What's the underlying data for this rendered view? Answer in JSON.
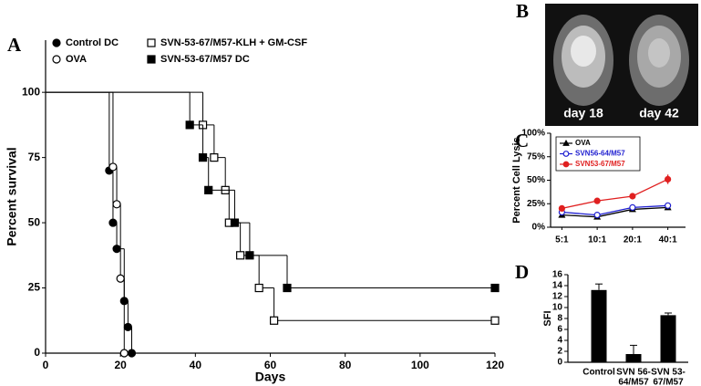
{
  "chart_data": [
    {
      "type": "survival",
      "panel": "A",
      "xlabel": "Days",
      "ylabel": "Percent survival",
      "xlim": [
        0,
        120
      ],
      "xticks": [
        0,
        20,
        40,
        60,
        80,
        100,
        120
      ],
      "ylim": [
        0,
        120
      ],
      "yticks": [
        0,
        25,
        50,
        75,
        100
      ],
      "series": [
        {
          "name": "Control DC",
          "color": "#000000",
          "marker": "circle",
          "filled": true,
          "x": [
            0,
            17,
            18,
            19,
            21,
            22,
            23
          ],
          "values": [
            100,
            70,
            50,
            40,
            20,
            10,
            0
          ]
        },
        {
          "name": "OVA",
          "color": "#000000",
          "marker": "circle",
          "filled": false,
          "x": [
            0,
            18,
            19,
            20,
            21
          ],
          "values": [
            100,
            71.4,
            57.1,
            28.6,
            0
          ]
        },
        {
          "name": "SVN-53-67/M57-KLH + GM-CSF",
          "color": "#000000",
          "marker": "square",
          "filled": false,
          "x": [
            0,
            42,
            45,
            48,
            49,
            52,
            57,
            61,
            120
          ],
          "values": [
            100,
            87.5,
            75,
            62.5,
            50,
            37.5,
            25,
            12.5,
            12.5
          ]
        },
        {
          "name": "SVN-53-67/M57 DC",
          "color": "#000000",
          "marker": "square",
          "filled": true,
          "x": [
            0,
            38.5,
            42,
            43.5,
            50.5,
            54.5,
            64.5,
            120
          ],
          "values": [
            100,
            87.5,
            75,
            62.5,
            50,
            37.5,
            25,
            25
          ]
        }
      ]
    },
    {
      "type": "line",
      "panel": "C",
      "ylabel": "Percent Cell Lysis",
      "categories": [
        "5:1",
        "10:1",
        "20:1",
        "40:1"
      ],
      "ylim": [
        0,
        100
      ],
      "yticks": [
        {
          "value": 0,
          "label": "0%"
        },
        {
          "value": 25,
          "label": "25%"
        },
        {
          "value": 50,
          "label": "50%"
        },
        {
          "value": 75,
          "label": "75%"
        },
        {
          "value": 100,
          "label": "100%"
        }
      ],
      "series": [
        {
          "name": "OVA",
          "color": "#000000",
          "marker": "triangle",
          "filled": true,
          "values": [
            13,
            11,
            19,
            21
          ]
        },
        {
          "name": "SVN56-64/M57",
          "color": "#1f1fd0",
          "marker": "circle",
          "filled": false,
          "values": [
            16,
            13,
            21,
            23
          ]
        },
        {
          "name": "SVN53-67/M57",
          "color": "#e02020",
          "marker": "circle",
          "filled": true,
          "values": [
            20,
            28,
            33,
            51
          ],
          "errors": [
            2,
            2,
            3,
            5
          ]
        }
      ]
    },
    {
      "type": "bar",
      "panel": "D",
      "ylabel": "SFI",
      "color": "#000000",
      "categories": [
        [
          "Control"
        ],
        [
          "SVN 56-",
          "64/M57"
        ],
        [
          "SVN 53-",
          "67/M57"
        ]
      ],
      "values": [
        13.2,
        1.5,
        8.6
      ],
      "errors": [
        1.1,
        1.6,
        0.4
      ],
      "ylim": [
        0,
        16
      ],
      "yticks": [
        0,
        2,
        4,
        6,
        8,
        10,
        12,
        14,
        16
      ]
    }
  ],
  "image_panel": {
    "panel": "B",
    "captions": [
      "day 18",
      "day 42"
    ]
  }
}
